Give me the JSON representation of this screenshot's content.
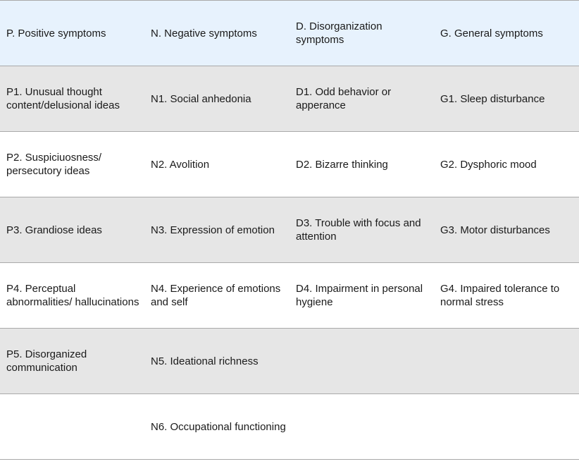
{
  "headers": [
    "P. Positive symptoms",
    "N. Negative symptoms",
    "D. Disorganization symptoms",
    "G. General symptoms"
  ],
  "rows": [
    [
      "P1. Unusual thought content/delusional ideas",
      "N1. Social anhedonia",
      "D1. Odd behavior or apperance",
      "G1. Sleep disturbance"
    ],
    [
      "P2. Suspiciuosness/ persecutory ideas",
      "N2. Avolition",
      "D2. Bizarre thinking",
      "G2. Dysphoric mood"
    ],
    [
      "P3. Grandiose ideas",
      "N3. Expression of emotion",
      "D3. Trouble with focus and attention",
      "G3. Motor disturbances"
    ],
    [
      "P4. Perceptual abnormalities/ hallucinations",
      "N4. Experience of emotions and self",
      "D4. Impairment in personal hygiene",
      "G4. Impaired tolerance to normal stress"
    ],
    [
      "P5. Disorganized communication",
      "N5. Ideational richness",
      "",
      ""
    ],
    [
      "",
      "N6. Occupational functioning",
      "",
      ""
    ]
  ],
  "colors": {
    "header_bg": "#e7f2fd",
    "shaded_row_bg": "#e6e6e6",
    "plain_row_bg": "#ffffff",
    "border": "#a9a9a9"
  }
}
